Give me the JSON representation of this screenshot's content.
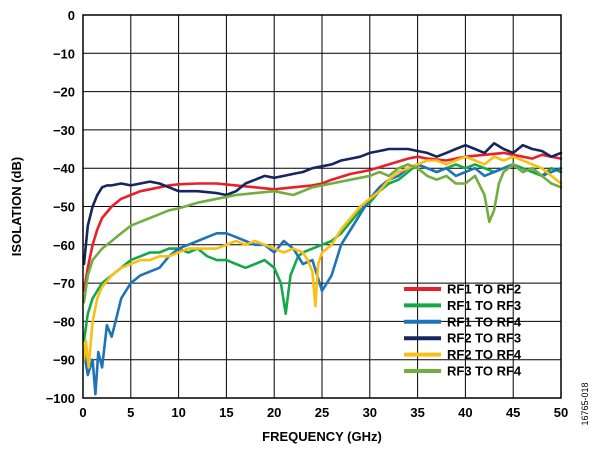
{
  "chart_data": {
    "type": "line",
    "xlabel": "FREQUENCY (GHz)",
    "ylabel": "ISOLATION (dB)",
    "xlim": [
      0,
      50
    ],
    "ylim": [
      -100,
      0
    ],
    "xticks": [
      0,
      5,
      10,
      15,
      20,
      25,
      30,
      35,
      40,
      45,
      50
    ],
    "yticks": [
      0,
      -10,
      -20,
      -30,
      -40,
      -50,
      -60,
      -70,
      -80,
      -90,
      -100
    ],
    "grid": true,
    "legend_position": "bottom-right",
    "figure_id": "16765-018",
    "series": [
      {
        "name": "RF1 TO RF2",
        "color": "#e8202a",
        "x": [
          0.1,
          0.5,
          1,
          1.5,
          2,
          3,
          4,
          5,
          6,
          7,
          8,
          9,
          10,
          12,
          14,
          16,
          18,
          20,
          22,
          24,
          25,
          26,
          28,
          30,
          32,
          34,
          35,
          36,
          38,
          40,
          42,
          44,
          45,
          46,
          47,
          48,
          49,
          50
        ],
        "y": [
          -72,
          -66,
          -60,
          -56,
          -53,
          -50,
          -48,
          -47,
          -46,
          -45.5,
          -45,
          -44.5,
          -44.2,
          -44,
          -44,
          -44.5,
          -45,
          -45.5,
          -45,
          -44.5,
          -44,
          -43,
          -41.5,
          -40.5,
          -39,
          -37.5,
          -37,
          -37.5,
          -38,
          -37,
          -36.5,
          -36,
          -36.5,
          -37,
          -37.5,
          -36.5,
          -37,
          -37.5
        ]
      },
      {
        "name": "RF1 TO RF3",
        "color": "#14a84b",
        "x": [
          0.1,
          0.5,
          1,
          1.5,
          2,
          3,
          4,
          5,
          6,
          7,
          8,
          9,
          10,
          11,
          12,
          13,
          14,
          15,
          16,
          17,
          18,
          19,
          20,
          20.7,
          21.2,
          21.7,
          22.5,
          23,
          24,
          25,
          26,
          27,
          28,
          29,
          30,
          31,
          32,
          33,
          34,
          35,
          36,
          37,
          38,
          39,
          40,
          41,
          42,
          43,
          44,
          45,
          46,
          47,
          48,
          49,
          50
        ],
        "y": [
          -85,
          -78,
          -74,
          -72,
          -70,
          -68,
          -66,
          -64,
          -63,
          -62,
          -62,
          -61,
          -61,
          -62,
          -61,
          -63,
          -64,
          -64,
          -65,
          -66,
          -65,
          -64,
          -66,
          -70,
          -78,
          -68,
          -63,
          -62,
          -61,
          -60,
          -59,
          -57,
          -54,
          -51,
          -49,
          -46,
          -44,
          -43,
          -41,
          -39,
          -40,
          -41,
          -40,
          -39,
          -40,
          -39,
          -40,
          -41,
          -40,
          -39,
          -40,
          -41,
          -42,
          -40,
          -41
        ]
      },
      {
        "name": "RF1 TO RF4",
        "color": "#1f73b8",
        "x": [
          0.1,
          0.5,
          1,
          1.3,
          1.6,
          2,
          2.5,
          3,
          3.5,
          4,
          5,
          6,
          7,
          8,
          9,
          10,
          11,
          12,
          13,
          14,
          15,
          16,
          17,
          18,
          19,
          20,
          21,
          22,
          23,
          24,
          25,
          26,
          27,
          28,
          29,
          30,
          31,
          32,
          33,
          34,
          35,
          36,
          37,
          38,
          39,
          40,
          41,
          42,
          43,
          44,
          45,
          46,
          47,
          48,
          49,
          50
        ],
        "y": [
          -88,
          -94,
          -90,
          -99,
          -88,
          -92,
          -81,
          -84,
          -79,
          -74,
          -70,
          -68,
          -67,
          -66,
          -63,
          -61,
          -60,
          -59,
          -58,
          -57,
          -57,
          -58,
          -59,
          -60,
          -60,
          -62,
          -59,
          -61,
          -65,
          -64,
          -72,
          -68,
          -60,
          -56,
          -52,
          -48,
          -45,
          -43,
          -42,
          -40,
          -39,
          -40,
          -41,
          -40,
          -42,
          -41,
          -40,
          -42,
          -41,
          -40,
          -39,
          -41,
          -40,
          -42,
          -41,
          -40
        ]
      },
      {
        "name": "RF2 TO RF3",
        "color": "#14275e",
        "x": [
          0.1,
          0.5,
          1,
          1.5,
          2,
          2.5,
          3,
          4,
          5,
          6,
          7,
          8,
          9,
          10,
          12,
          14,
          15,
          16,
          17,
          18,
          19,
          20,
          21,
          22,
          23,
          24,
          25,
          26,
          27,
          28,
          29,
          30,
          31,
          32,
          33,
          34,
          35,
          36,
          37,
          38,
          39,
          40,
          41,
          42,
          43,
          44,
          45,
          46,
          47,
          48,
          49,
          50
        ],
        "y": [
          -65,
          -55,
          -50,
          -47,
          -45,
          -44.5,
          -44.5,
          -44,
          -44.5,
          -44,
          -43.5,
          -44,
          -45,
          -46,
          -46,
          -46.5,
          -47,
          -46,
          -44,
          -43,
          -42,
          -42.5,
          -42,
          -41.5,
          -41,
          -40,
          -39.5,
          -39,
          -38,
          -37.5,
          -37,
          -36,
          -35.5,
          -35,
          -35,
          -35,
          -35.5,
          -36,
          -37,
          -36,
          -35,
          -34,
          -35,
          -36,
          -33.5,
          -35,
          -36,
          -34,
          -35,
          -35.5,
          -37,
          -36
        ]
      },
      {
        "name": "RF2 TO RF4",
        "color": "#f9bf12",
        "x": [
          0.1,
          0.3,
          0.6,
          1,
          1.5,
          2,
          3,
          4,
          5,
          6,
          7,
          8,
          9,
          10,
          11,
          12,
          13,
          14,
          15,
          16,
          17,
          18,
          19,
          20,
          21,
          22,
          23,
          23.5,
          24,
          24.3,
          24.6,
          25,
          26,
          27,
          28,
          29,
          30,
          31,
          32,
          33,
          34,
          35,
          36,
          37,
          38,
          39,
          40,
          41,
          42,
          43,
          44,
          45,
          46,
          47,
          48,
          49,
          50
        ],
        "y": [
          -90,
          -85,
          -92,
          -80,
          -74,
          -71,
          -68,
          -66,
          -65,
          -64,
          -64,
          -63,
          -63,
          -62,
          -61,
          -61,
          -61,
          -61,
          -60,
          -59,
          -60,
          -59,
          -60,
          -61,
          -62,
          -61,
          -62,
          -64,
          -67,
          -76,
          -65,
          -62,
          -60,
          -56,
          -53,
          -50,
          -48,
          -46,
          -43,
          -41,
          -40,
          -39,
          -38,
          -38,
          -39,
          -38,
          -37,
          -38,
          -39,
          -37,
          -38,
          -37,
          -38,
          -39,
          -40,
          -42,
          -44
        ]
      },
      {
        "name": "RF3 TO RF4",
        "color": "#72ae3f",
        "x": [
          0.1,
          0.5,
          1,
          2,
          3,
          4,
          5,
          6,
          7,
          8,
          9,
          10,
          12,
          14,
          16,
          18,
          20,
          22,
          24,
          26,
          28,
          30,
          31,
          32,
          33,
          34,
          35,
          36,
          37,
          38,
          39,
          40,
          41,
          42,
          42.5,
          43,
          43.5,
          44,
          45,
          46,
          47,
          48,
          49,
          50
        ],
        "y": [
          -75,
          -68,
          -64,
          -61,
          -59,
          -57,
          -55,
          -54,
          -53,
          -52,
          -51,
          -50.5,
          -49,
          -48,
          -47,
          -46.5,
          -46,
          -47,
          -45,
          -44,
          -43,
          -42,
          -41,
          -42,
          -40,
          -39,
          -40,
          -42,
          -43,
          -42,
          -44,
          -44,
          -42,
          -47,
          -54,
          -51,
          -44,
          -41,
          -39,
          -41,
          -40,
          -42,
          -44,
          -45
        ]
      }
    ]
  }
}
